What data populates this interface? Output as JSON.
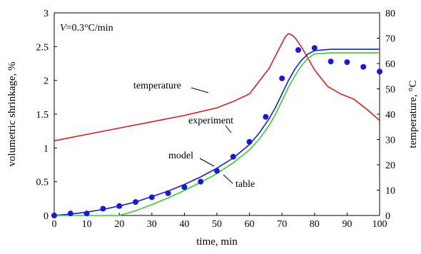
{
  "chart_data": {
    "type": "line",
    "title": "",
    "condition": {
      "var": "V",
      "value": "=0.3°C/min"
    },
    "xlabel": "time, min",
    "ylabel_left": "volumetric shrinkage, %",
    "ylabel_right": "temperature, °C",
    "xlim": [
      0,
      100
    ],
    "ylim_left": [
      0,
      3
    ],
    "ylim_right": [
      0,
      80
    ],
    "x_ticks": [
      "0",
      "10",
      "20",
      "30",
      "40",
      "50",
      "60",
      "70",
      "80",
      "90",
      "100"
    ],
    "y_left_ticks": [
      "0",
      "0.5",
      "1",
      "1.5",
      "2",
      "2.5",
      "3"
    ],
    "y_right_ticks": [
      "0",
      "10",
      "20",
      "30",
      "40",
      "50",
      "60",
      "70",
      "80"
    ],
    "grid": false,
    "legend": "none",
    "series": [
      {
        "name": "temperature",
        "axis": "right",
        "style": "line",
        "color": "#cc2222",
        "x": [
          0,
          10,
          20,
          30,
          40,
          50,
          55,
          60,
          63,
          66,
          68,
          70,
          71,
          72,
          73,
          74,
          76,
          78,
          80,
          84,
          88,
          92,
          96,
          100
        ],
        "y": [
          29.5,
          32,
          34.5,
          37,
          39.5,
          42.5,
          45,
          48,
          53,
          58,
          63,
          68,
          70.5,
          71.8,
          71.3,
          70.2,
          66.5,
          62,
          57.5,
          51,
          48,
          46,
          42,
          37.5
        ]
      },
      {
        "name": "model",
        "axis": "left",
        "style": "line",
        "color": "#1a1acc",
        "x": [
          0,
          5,
          10,
          15,
          20,
          25,
          30,
          35,
          40,
          45,
          50,
          55,
          60,
          63,
          66,
          68,
          70,
          72,
          74,
          76,
          78,
          80,
          85,
          90,
          95,
          100
        ],
        "y": [
          0,
          0.02,
          0.05,
          0.09,
          0.14,
          0.2,
          0.28,
          0.36,
          0.46,
          0.57,
          0.7,
          0.85,
          1.05,
          1.22,
          1.43,
          1.6,
          1.8,
          2.0,
          2.17,
          2.3,
          2.39,
          2.44,
          2.46,
          2.46,
          2.46,
          2.46
        ]
      },
      {
        "name": "table",
        "axis": "left",
        "style": "line",
        "color": "#33cc33",
        "x": [
          0,
          10,
          20,
          25,
          30,
          35,
          40,
          45,
          50,
          55,
          60,
          63,
          66,
          68,
          70,
          72,
          74,
          76,
          78,
          80,
          85,
          90,
          95,
          100
        ],
        "y": [
          0,
          0,
          0,
          0.07,
          0.16,
          0.26,
          0.37,
          0.49,
          0.62,
          0.78,
          0.97,
          1.13,
          1.33,
          1.5,
          1.7,
          1.9,
          2.07,
          2.22,
          2.33,
          2.39,
          2.41,
          2.41,
          2.41,
          2.41
        ]
      },
      {
        "name": "experiment",
        "axis": "left",
        "style": "markers",
        "color": "#1a1acc",
        "x": [
          0,
          5,
          10,
          15,
          20,
          25,
          30,
          35,
          40,
          45,
          50,
          55,
          60,
          65,
          70,
          75,
          80,
          85,
          90,
          95,
          100
        ],
        "y": [
          0,
          0.03,
          0.03,
          0.1,
          0.14,
          0.2,
          0.27,
          0.33,
          0.42,
          0.5,
          0.66,
          0.87,
          1.09,
          1.46,
          2.03,
          2.45,
          2.48,
          2.28,
          2.27,
          2.2,
          2.13
        ]
      }
    ],
    "annotations": [
      "temperature",
      "experiment",
      "model",
      "table"
    ]
  }
}
